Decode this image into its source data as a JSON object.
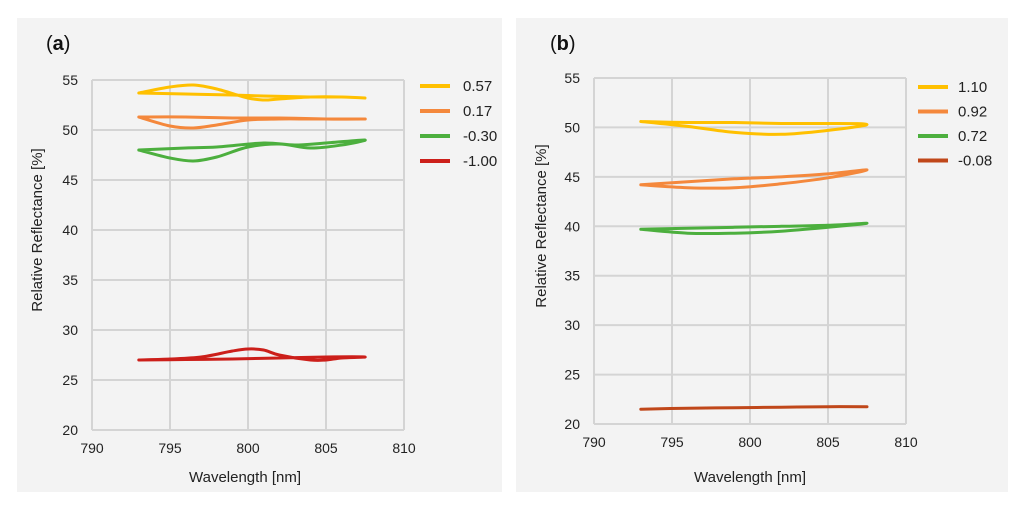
{
  "chart_data": [
    {
      "panel": "a",
      "type": "line",
      "xlabel": "Wavelength [nm]",
      "ylabel": "Relative Reflectance [%]",
      "xlim": [
        790,
        810
      ],
      "ylim": [
        20,
        55
      ],
      "xticks": [
        790,
        795,
        800,
        805,
        810
      ],
      "yticks": [
        20,
        25,
        30,
        35,
        40,
        45,
        50,
        55
      ],
      "legend_position": "right",
      "series": [
        {
          "name": "0.57",
          "color": "#ffc000",
          "x": [
            793,
            795,
            796.5,
            798,
            800,
            801,
            802,
            804,
            806,
            807.5,
            806,
            804,
            801,
            799,
            796,
            793
          ],
          "y": [
            53.7,
            54.3,
            54.5,
            54.1,
            53.2,
            53,
            53.1,
            53.3,
            53.3,
            53.2,
            53.3,
            53.3,
            53.4,
            53.5,
            53.6,
            53.7
          ]
        },
        {
          "name": "0.17",
          "color": "#f4883c",
          "x": [
            793,
            795,
            796.5,
            798,
            800,
            802,
            804,
            806,
            807.5,
            805,
            802,
            799,
            796,
            793
          ],
          "y": [
            51.3,
            50.4,
            50.2,
            50.5,
            51,
            51.1,
            51.1,
            51.1,
            51.1,
            51.1,
            51.2,
            51.2,
            51.3,
            51.3
          ]
        },
        {
          "name": "-0.30",
          "color": "#4caf3e",
          "x": [
            793,
            795,
            796.5,
            798,
            800,
            802,
            804,
            806,
            807.5,
            805,
            803,
            801,
            798,
            796,
            793
          ],
          "y": [
            48,
            47.2,
            46.9,
            47.3,
            48.3,
            48.6,
            48.2,
            48.5,
            49,
            48.7,
            48.5,
            48.7,
            48.3,
            48.2,
            48
          ]
        },
        {
          "name": "-1.00",
          "color": "#cc1f1a",
          "x": [
            793,
            795,
            797,
            799,
            800,
            801,
            802,
            804,
            805,
            806,
            807.5,
            805,
            802,
            799,
            796,
            793
          ],
          "y": [
            27,
            27.1,
            27.3,
            27.9,
            28.1,
            28,
            27.5,
            27,
            27,
            27.2,
            27.3,
            27.3,
            27.2,
            27.1,
            27.05,
            27
          ]
        }
      ]
    },
    {
      "panel": "b",
      "type": "line",
      "xlabel": "Wavelength [nm]",
      "ylabel": "Relative Reflectance [%]",
      "xlim": [
        790,
        810
      ],
      "ylim": [
        20,
        55
      ],
      "xticks": [
        790,
        795,
        800,
        805,
        810
      ],
      "yticks": [
        20,
        25,
        30,
        35,
        40,
        45,
        50,
        55
      ],
      "legend_position": "right",
      "series": [
        {
          "name": "1.10",
          "color": "#ffc000",
          "x": [
            793,
            796,
            799,
            802,
            805,
            807.5,
            805,
            802,
            799,
            796,
            793
          ],
          "y": [
            50.6,
            50.1,
            49.5,
            49.3,
            49.7,
            50.3,
            50.4,
            50.4,
            50.5,
            50.5,
            50.6
          ]
        },
        {
          "name": "0.92",
          "color": "#f4883c",
          "x": [
            793,
            796,
            799,
            802,
            805,
            807.5,
            805,
            802,
            799,
            796,
            793
          ],
          "y": [
            44.2,
            43.9,
            43.9,
            44.3,
            44.9,
            45.7,
            45.3,
            45,
            44.8,
            44.5,
            44.2
          ]
        },
        {
          "name": "0.72",
          "color": "#4caf3e",
          "x": [
            793,
            796,
            799,
            802,
            805,
            807.5,
            805,
            802,
            799,
            796,
            793
          ],
          "y": [
            39.7,
            39.3,
            39.3,
            39.5,
            39.9,
            40.3,
            40.1,
            40,
            39.9,
            39.8,
            39.7
          ]
        },
        {
          "name": "-0.08",
          "color": "#c0471a",
          "x": [
            793,
            796,
            799,
            802,
            805,
            807.5
          ],
          "y": [
            21.5,
            21.6,
            21.65,
            21.7,
            21.75,
            21.75
          ]
        }
      ]
    }
  ]
}
